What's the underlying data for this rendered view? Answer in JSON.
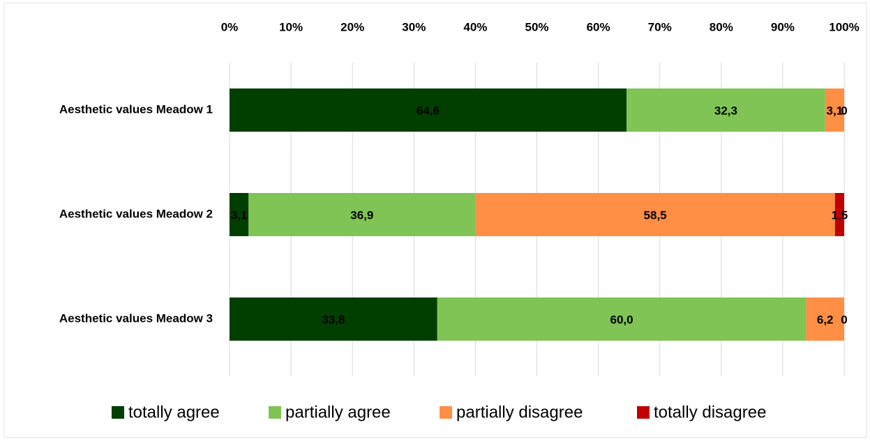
{
  "chart_data": {
    "type": "stacked-bar-horizontal",
    "categories": [
      "Aesthetic values Meadow 1",
      "Aesthetic values Meadow 2",
      "Aesthetic values Meadow 3"
    ],
    "series": [
      {
        "name": "totally agree",
        "color": "#003f00",
        "values": [
          64.6,
          3.1,
          33.8
        ],
        "value_labels": [
          "64,6",
          "3,1",
          "33,8"
        ]
      },
      {
        "name": "partially agree",
        "color": "#7fc454",
        "values": [
          32.3,
          36.9,
          60.0
        ],
        "value_labels": [
          "32,3",
          "36,9",
          "60,0"
        ]
      },
      {
        "name": "partially disagree",
        "color": "#ff8f45",
        "values": [
          3.1,
          58.5,
          6.2
        ],
        "value_labels": [
          "3,1",
          "58,5",
          "6,2"
        ]
      },
      {
        "name": "totally disagree",
        "color": "#c00000",
        "values": [
          0,
          1.5,
          0
        ],
        "value_labels": [
          "0",
          "1,5",
          "0"
        ]
      }
    ],
    "xlim": [
      0,
      100
    ],
    "xticks": [
      {
        "value": 0,
        "label": "0%"
      },
      {
        "value": 10,
        "label": "10%"
      },
      {
        "value": 20,
        "label": "20%"
      },
      {
        "value": 30,
        "label": "30%"
      },
      {
        "value": 40,
        "label": "40%"
      },
      {
        "value": 50,
        "label": "50%"
      },
      {
        "value": 60,
        "label": "60%"
      },
      {
        "value": 70,
        "label": "70%"
      },
      {
        "value": 80,
        "label": "80%"
      },
      {
        "value": 90,
        "label": "90%"
      },
      {
        "value": 100,
        "label": "100%"
      }
    ],
    "grid": true,
    "legend": "bottom"
  }
}
